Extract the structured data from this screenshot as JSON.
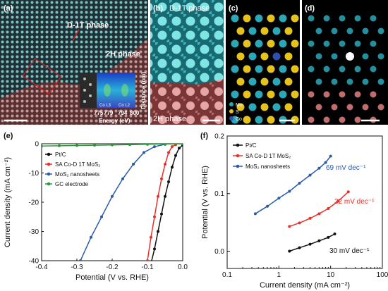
{
  "colors": {
    "stem_bg": "#1a2a30",
    "cyan": "#3ec8c8",
    "red_region": "#c06060",
    "mo_cyan": "#2aa8b8",
    "s_yellow": "#e6c31a",
    "co_blue": "#3050b0",
    "black": "#111111",
    "red": "#e8302a",
    "blue": "#2a5aa8",
    "green": "#2a9a3a"
  },
  "panels": {
    "a": {
      "label": "(a)",
      "annotation_d1t": "D-1T phase",
      "annotation_2h": "2H phase",
      "inset": {
        "ylabel": "Distance (nm)",
        "xlabel": "Energy (eV)",
        "xticks": [
          "775",
          "779",
          "794",
          "800"
        ],
        "peak_labels": [
          "Co L3",
          "Co L2"
        ]
      }
    },
    "b": {
      "label": "(b)",
      "top_text": "D-1T phase",
      "bottom_text": "2H phase"
    },
    "c": {
      "label": "(c)",
      "legend": [
        "Mo",
        "S",
        "Co"
      ]
    },
    "d": {
      "label": "(d)"
    },
    "e": {
      "label": "(e)"
    },
    "f": {
      "label": "(f)"
    }
  },
  "chart_data": [
    {
      "panel": "e",
      "type": "line",
      "xlabel": "Potential (V vs. RHE)",
      "ylabel": "Current density (mA cm⁻²)",
      "xlim": [
        -0.4,
        0.0
      ],
      "ylim": [
        -40,
        0
      ],
      "xticks": [
        "-0.4",
        "-0.3",
        "-0.2",
        "-0.1",
        "0.0"
      ],
      "yticks": [
        "0",
        "-10",
        "-20",
        "-30",
        "-40"
      ],
      "legend_position": "top-left",
      "series": [
        {
          "name": "Pt/C",
          "color": "#111111",
          "x": [
            0.0,
            -0.01,
            -0.02,
            -0.03,
            -0.04,
            -0.05,
            -0.06,
            -0.07,
            -0.08,
            -0.09
          ],
          "y": [
            -0.5,
            -1.5,
            -4,
            -8,
            -13,
            -18,
            -24,
            -30,
            -36,
            -41
          ]
        },
        {
          "name": "SA Co-D 1T MoS₂",
          "color": "#e8302a",
          "x": [
            -0.02,
            -0.03,
            -0.04,
            -0.05,
            -0.06,
            -0.07,
            -0.08,
            -0.09,
            -0.1
          ],
          "y": [
            -0.3,
            -1,
            -3,
            -7,
            -12,
            -18,
            -25,
            -32,
            -40
          ]
        },
        {
          "name": "MoS₂ nanosheets",
          "color": "#2a5aa8",
          "x": [
            -0.05,
            -0.08,
            -0.11,
            -0.14,
            -0.17,
            -0.2,
            -0.23,
            -0.26,
            -0.29
          ],
          "y": [
            -0.2,
            -1,
            -3,
            -7,
            -12,
            -18,
            -25,
            -32,
            -40
          ]
        },
        {
          "name": "GC electrode",
          "color": "#2a9a3a",
          "x": [
            -0.4,
            -0.35,
            -0.3,
            -0.25,
            -0.2,
            -0.15,
            -0.1,
            -0.05,
            0.0
          ],
          "y": [
            -0.8,
            -0.7,
            -0.6,
            -0.5,
            -0.4,
            -0.3,
            -0.2,
            -0.1,
            0.0
          ]
        }
      ]
    },
    {
      "panel": "f",
      "type": "line",
      "xscale": "log",
      "xlabel": "Current density (mA cm⁻²)",
      "ylabel": "Potential (V vs. RHE)",
      "xlim": [
        0.1,
        100
      ],
      "ylim": [
        -0.03,
        0.2
      ],
      "xticks": [
        "0.1",
        "1",
        "10",
        "100"
      ],
      "yticks": [
        "0.0",
        "0.1",
        "0.2"
      ],
      "legend_position": "top-left",
      "series": [
        {
          "name": "Pt/C",
          "color": "#111111",
          "x": [
            1.6,
            2.5,
            4,
            6,
            9,
            12
          ],
          "y": [
            0.0,
            0.006,
            0.012,
            0.018,
            0.024,
            0.03
          ],
          "annotation": "30 mV dec⁻¹"
        },
        {
          "name": "SA Co-D 1T MoS₂",
          "color": "#e8302a",
          "x": [
            1.6,
            2.5,
            4,
            6,
            9,
            14,
            22
          ],
          "y": [
            0.043,
            0.049,
            0.057,
            0.065,
            0.074,
            0.087,
            0.103
          ],
          "annotation": "32 mV dec⁻¹"
        },
        {
          "name": "MoS₂ nanosheets",
          "color": "#2a5aa8",
          "x": [
            0.35,
            0.6,
            1,
            1.6,
            2.5,
            4,
            6,
            8,
            10
          ],
          "y": [
            0.065,
            0.078,
            0.092,
            0.104,
            0.118,
            0.132,
            0.144,
            0.154,
            0.165
          ],
          "annotation": "69 mV dec⁻¹"
        }
      ]
    }
  ]
}
